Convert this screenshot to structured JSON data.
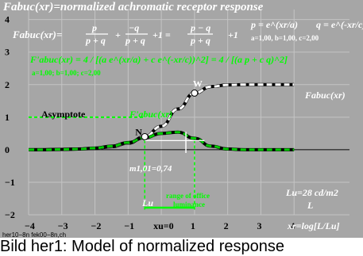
{
  "chart_data": {
    "type": "line",
    "title": "Fabuc(xr)=normalized achromatic receptor response",
    "xlabel": "xr=log[L/Lu]",
    "ylabel": "",
    "xlim": [
      -4,
      5
    ],
    "ylim": [
      -2,
      4.6
    ],
    "x_ticks": [
      "-4",
      "-3",
      "-2",
      "-1",
      "xu=0",
      "1",
      "2",
      "3",
      "4"
    ],
    "y_ticks": [
      "-2",
      "-1",
      "0",
      "1",
      "2",
      "3",
      "4"
    ],
    "parameters": "a=1,00, b=1,00, c=2,00",
    "parameters_derivative": "a=1,00; b=1,00; c=2,00",
    "series": [
      {
        "name": "Fabuc(xr)",
        "color": "#ffffff",
        "x": [
          -4.0,
          -3.5,
          -3.0,
          -2.5,
          -2.0,
          -1.5,
          -1.0,
          -0.5,
          0.0,
          0.5,
          1.0,
          1.5,
          2.0,
          2.5,
          3.0,
          3.5,
          4.0
        ],
        "values": [
          0.0,
          0.0,
          0.01,
          0.02,
          0.04,
          0.09,
          0.2,
          0.4,
          0.72,
          1.25,
          1.74,
          1.94,
          1.99,
          2.0,
          2.0,
          2.0,
          2.0
        ]
      },
      {
        "name": "F'abuc(xr)",
        "color": "#00cc00",
        "x": [
          -4.0,
          -3.5,
          -3.0,
          -2.5,
          -2.0,
          -1.5,
          -1.0,
          -0.5,
          0.0,
          0.5,
          1.0,
          1.5,
          2.0,
          2.5,
          3.0,
          3.5,
          4.0
        ],
        "values": [
          0.0,
          0.0,
          0.01,
          0.02,
          0.05,
          0.11,
          0.22,
          0.37,
          0.5,
          0.54,
          0.35,
          0.11,
          0.02,
          0.0,
          0.0,
          0.0,
          0.0
        ]
      }
    ],
    "asymptote": {
      "label": "Asymptote",
      "y": 1.0
    },
    "points": [
      {
        "label": "N",
        "x": -0.5,
        "y": 0.4
      },
      {
        "label": "W",
        "x": 1.0,
        "y": 1.74
      }
    ],
    "annotations": {
      "formula_lhs": "Fabuc(xr)=",
      "formula_rhs": "p/(p+q) + -q/(p+q) + 1 = (p-q)/(p+q) + 1",
      "p_def": "p = e^(xr/a)",
      "q_def": "q = e^(-xr/c)",
      "derivative_formula": "F'abuc(xr) = 4 / [(a e^(xr/a) + c e^(-xr/c))^2] = 4 / [(a p + c q)^2]",
      "m_label": "m1,01=0,74",
      "Lu_label": "Lu",
      "range_label": "range of office luminance",
      "lu_value": "Lu=28 cd/m2",
      "L_label": "L",
      "curve_label_white": "Fabuc(xr)",
      "curve_label_green": "F'abuc(xr)"
    },
    "office_range": [
      -0.5,
      1.0
    ],
    "m_marker_x": 0.74,
    "grid": true,
    "legend": "none"
  },
  "footer": {
    "code": "her10−8n fek00−8n,ch",
    "caption": "Bild her1: Model of normalized response"
  }
}
